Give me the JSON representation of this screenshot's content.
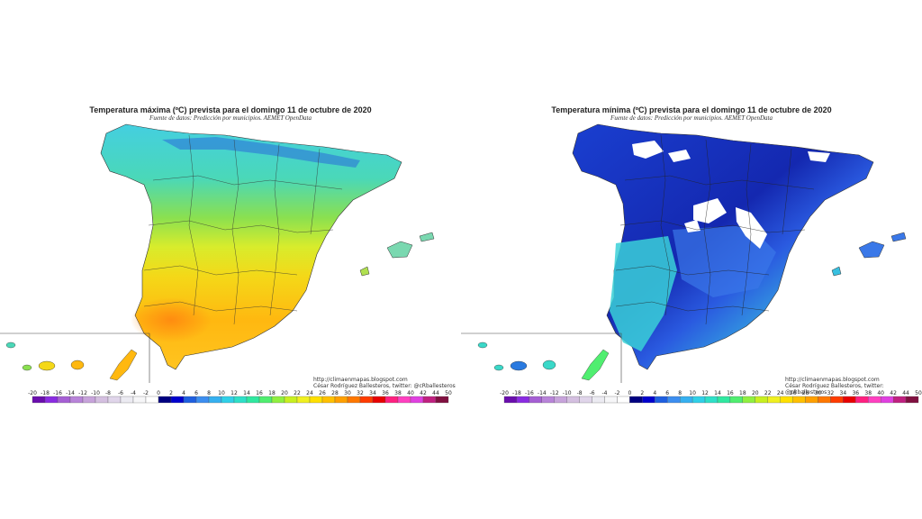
{
  "panels": [
    {
      "id": "max",
      "title": "Temperatura máxima (ºC) prevista para el domingo 11 de octubre de 2020",
      "source": "Fuente de datos: Predicción por municipios. AEMET OpenData",
      "credit_url": "http://climaenmapas.blogspot.com",
      "credit_author": "César Rodríguez Ballesteros, twitter: @cRballesteros"
    },
    {
      "id": "min",
      "title": "Temperatura mínima (ºC) prevista para el domingo 11 de octubre de 2020",
      "source": "Fuente de datos: Predicción por municipios. AEMET OpenData",
      "credit_url": "http://climaenmapas.blogspot.com",
      "credit_author": "César Rodríguez Ballesteros, twitter: @cRballesteros"
    }
  ],
  "legend": {
    "labels": [
      "-20",
      "-18",
      "-16",
      "-14",
      "-12",
      "-10",
      "-8",
      "-6",
      "-4",
      "-2",
      "0",
      "2",
      "4",
      "6",
      "8",
      "10",
      "12",
      "14",
      "16",
      "18",
      "20",
      "22",
      "24",
      "26",
      "28",
      "30",
      "32",
      "34",
      "36",
      "38",
      "40",
      "42",
      "44",
      "50"
    ],
    "colors": [
      "#6a0dad",
      "#8a2be2",
      "#a55fd4",
      "#b884d9",
      "#c7a3db",
      "#d4bfe0",
      "#e0d5ea",
      "#ecebf2",
      "#f6f6f8",
      "#ffffff",
      "#000080",
      "#0000cd",
      "#1e5fe0",
      "#3c8ef0",
      "#36b0f0",
      "#30d0e8",
      "#2ee0c8",
      "#30e8a0",
      "#50ee70",
      "#90f040",
      "#c8f020",
      "#f0f020",
      "#ffe000",
      "#ffc000",
      "#ffa000",
      "#ff7800",
      "#ff3c00",
      "#e80000",
      "#ff2080",
      "#ff40c0",
      "#e040e0",
      "#c02080",
      "#801040"
    ]
  },
  "colors": {
    "max_base": "#7ad8b0",
    "min_base": "#1a3fc8"
  }
}
